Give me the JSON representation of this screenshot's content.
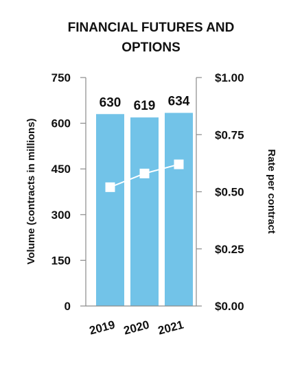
{
  "chart_data": {
    "type": "bar",
    "title_lines": [
      "FINANCIAL FUTURES AND",
      "OPTIONS"
    ],
    "categories": [
      "2019",
      "2020",
      "2021"
    ],
    "series": [
      {
        "values": [
          630,
          619,
          634
        ],
        "kind": "bar",
        "axis": "left"
      },
      {
        "values": [
          0.52,
          0.58,
          0.62
        ],
        "kind": "line",
        "axis": "right"
      }
    ],
    "data_labels": [
      "630",
      "619",
      "634"
    ],
    "ylabel": "Volume (contracts in millions)",
    "ylim": [
      0,
      750
    ],
    "yticks": [
      "0",
      "150",
      "300",
      "450",
      "600",
      "750"
    ],
    "y2label": "Rate per contract",
    "y2lim": [
      0,
      1
    ],
    "y2ticks": [
      "$0.00",
      "$0.25",
      "$0.50",
      "$0.75",
      "$1.00"
    ],
    "grid": false,
    "colors": {
      "bar": "#72C3E8",
      "line": "#FFFFFF",
      "marker": "#FFFFFF",
      "axis": "#8A8A8A",
      "text": "#111111"
    }
  }
}
